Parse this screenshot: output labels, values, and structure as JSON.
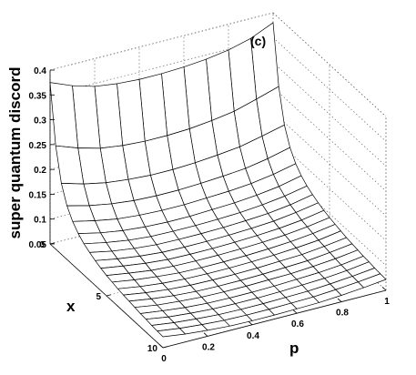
{
  "chart_data": {
    "type": "surface",
    "panel_label": "(c)",
    "zlabel": "super quantum discord",
    "xlabel": "x",
    "ylabel": "p",
    "x_ticks": [
      "0",
      "5",
      "10"
    ],
    "p_ticks": [
      "0",
      "0.2",
      "0.4",
      "0.6",
      "0.8",
      "1"
    ],
    "z_ticks": [
      "0.05",
      "0.1",
      "0.15",
      "0.2",
      "0.25",
      "0.3",
      "0.35",
      "0.4"
    ],
    "x_range": [
      0,
      10
    ],
    "p_range": [
      0,
      1
    ],
    "z_range": [
      0.05,
      0.4
    ],
    "grid": true,
    "x": [
      0,
      0.5,
      1,
      1.5,
      2,
      2.5,
      3,
      3.5,
      4,
      4.5,
      5,
      5.5,
      6,
      6.5,
      7,
      7.5,
      8,
      8.5,
      9,
      9.5,
      10
    ],
    "p": [
      0,
      0.1,
      0.2,
      0.3,
      0.4,
      0.5,
      0.6,
      0.7,
      0.8,
      0.9,
      1
    ],
    "z": [
      [
        0.375,
        0.357,
        0.344,
        0.338,
        0.335,
        0.335,
        0.337,
        0.341,
        0.348,
        0.36,
        0.38
      ],
      [
        0.258,
        0.242,
        0.23,
        0.224,
        0.221,
        0.221,
        0.223,
        0.228,
        0.235,
        0.248,
        0.262
      ],
      [
        0.193,
        0.18,
        0.171,
        0.166,
        0.163,
        0.163,
        0.165,
        0.169,
        0.174,
        0.184,
        0.195
      ],
      [
        0.158,
        0.147,
        0.139,
        0.134,
        0.132,
        0.132,
        0.134,
        0.137,
        0.141,
        0.149,
        0.16
      ],
      [
        0.137,
        0.127,
        0.119,
        0.115,
        0.113,
        0.113,
        0.115,
        0.117,
        0.121,
        0.128,
        0.138
      ],
      [
        0.123,
        0.113,
        0.106,
        0.102,
        0.1,
        0.1,
        0.102,
        0.104,
        0.108,
        0.114,
        0.124
      ],
      [
        0.113,
        0.104,
        0.097,
        0.093,
        0.092,
        0.092,
        0.093,
        0.095,
        0.099,
        0.105,
        0.114
      ],
      [
        0.106,
        0.097,
        0.091,
        0.087,
        0.086,
        0.086,
        0.087,
        0.089,
        0.092,
        0.098,
        0.107
      ],
      [
        0.1,
        0.092,
        0.086,
        0.082,
        0.081,
        0.081,
        0.082,
        0.084,
        0.087,
        0.093,
        0.101
      ],
      [
        0.095,
        0.088,
        0.082,
        0.078,
        0.077,
        0.077,
        0.078,
        0.08,
        0.083,
        0.088,
        0.096
      ],
      [
        0.091,
        0.084,
        0.078,
        0.075,
        0.074,
        0.074,
        0.075,
        0.077,
        0.08,
        0.085,
        0.092
      ],
      [
        0.088,
        0.081,
        0.076,
        0.072,
        0.071,
        0.071,
        0.072,
        0.074,
        0.077,
        0.082,
        0.089
      ],
      [
        0.085,
        0.078,
        0.073,
        0.07,
        0.069,
        0.069,
        0.07,
        0.072,
        0.075,
        0.079,
        0.086
      ],
      [
        0.083,
        0.076,
        0.071,
        0.068,
        0.067,
        0.067,
        0.068,
        0.07,
        0.072,
        0.077,
        0.083
      ],
      [
        0.081,
        0.074,
        0.069,
        0.066,
        0.065,
        0.065,
        0.066,
        0.068,
        0.07,
        0.075,
        0.081
      ],
      [
        0.079,
        0.072,
        0.068,
        0.065,
        0.064,
        0.064,
        0.065,
        0.066,
        0.069,
        0.073,
        0.079
      ],
      [
        0.077,
        0.071,
        0.066,
        0.063,
        0.062,
        0.062,
        0.063,
        0.065,
        0.067,
        0.071,
        0.077
      ],
      [
        0.076,
        0.069,
        0.065,
        0.062,
        0.061,
        0.061,
        0.062,
        0.064,
        0.066,
        0.07,
        0.076
      ],
      [
        0.074,
        0.068,
        0.064,
        0.061,
        0.06,
        0.06,
        0.061,
        0.062,
        0.065,
        0.069,
        0.074
      ],
      [
        0.073,
        0.067,
        0.063,
        0.06,
        0.059,
        0.059,
        0.06,
        0.061,
        0.064,
        0.068,
        0.073
      ],
      [
        0.072,
        0.066,
        0.062,
        0.059,
        0.058,
        0.058,
        0.059,
        0.06,
        0.063,
        0.067,
        0.072
      ]
    ]
  }
}
